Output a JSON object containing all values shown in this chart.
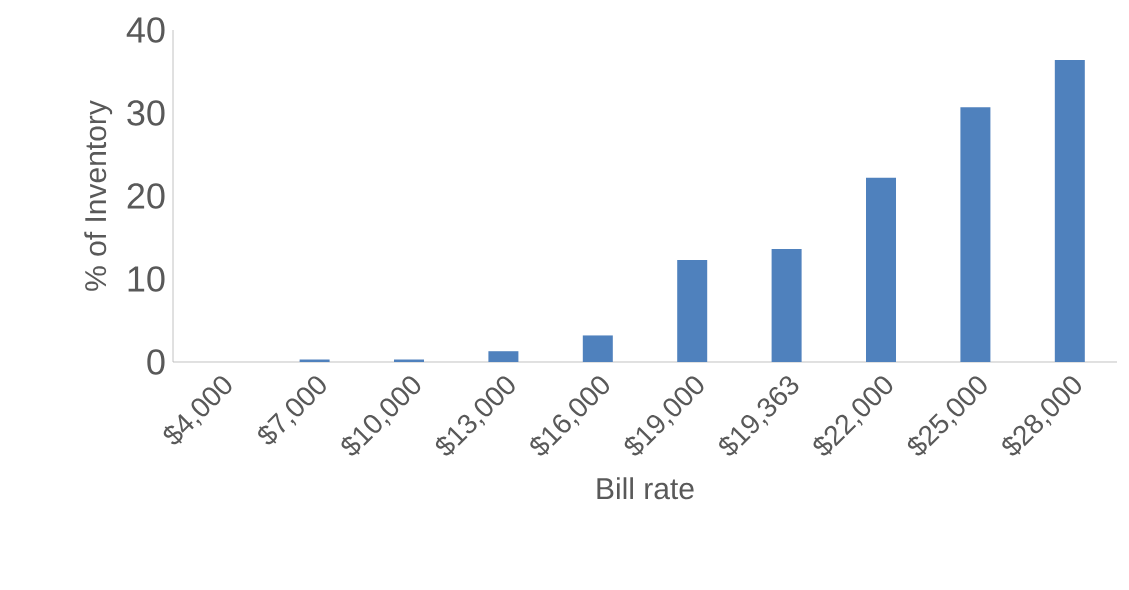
{
  "chart_data": {
    "type": "bar",
    "xlabel": "Bill rate",
    "ylabel": "% of Inventory",
    "categories": [
      "$4,000",
      "$7,000",
      "$10,000",
      "$13,000",
      "$16,000",
      "$19,000",
      "$19,363",
      "$22,000",
      "$25,000",
      "$28,000"
    ],
    "values": [
      0,
      0.3,
      0.3,
      1.3,
      3.2,
      12.3,
      13.6,
      22.2,
      30.7,
      36.4
    ],
    "color": "#4f81bd",
    "ylim": [
      0,
      40
    ],
    "yticks": [
      0,
      10,
      20,
      30,
      40
    ],
    "grid": false
  }
}
